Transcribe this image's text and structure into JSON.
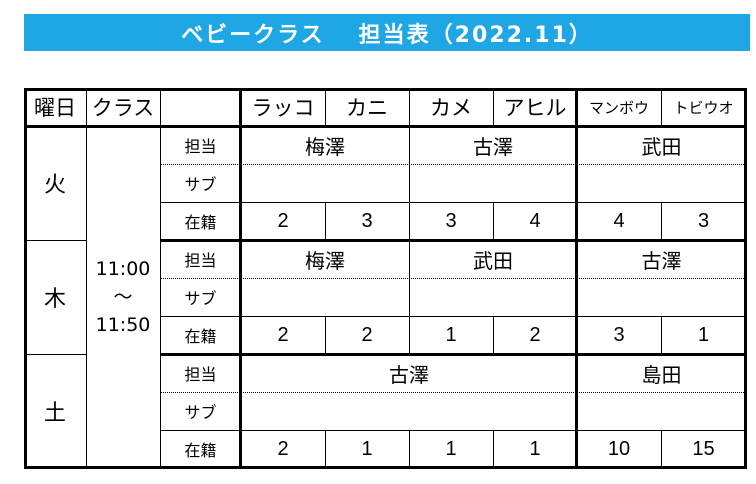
{
  "title": {
    "main": "ベビークラス",
    "sub": "担当表（2022.11）"
  },
  "headers": {
    "day": "曜日",
    "class": "クラス",
    "groups": [
      "ラッコ",
      "カニ",
      "カメ",
      "アヒル",
      "マンボウ",
      "トビウオ"
    ]
  },
  "time": {
    "start": "11:00",
    "sep": "～",
    "end": "11:50"
  },
  "row_labels": {
    "charge": "担当",
    "sub": "サブ",
    "enrolled": "在籍"
  },
  "days": [
    {
      "day": "火",
      "charge": [
        "梅澤",
        "古澤",
        "武田"
      ],
      "sub": [
        "",
        "",
        ""
      ],
      "enrolled": [
        "2",
        "3",
        "3",
        "4",
        "4",
        "3"
      ]
    },
    {
      "day": "木",
      "charge": [
        "梅澤",
        "武田",
        "古澤"
      ],
      "sub": [
        "",
        "",
        ""
      ],
      "enrolled": [
        "2",
        "2",
        "1",
        "2",
        "3",
        "1"
      ]
    },
    {
      "day": "土",
      "charge": [
        "古澤",
        "島田"
      ],
      "sub": [
        "",
        ""
      ],
      "enrolled": [
        "2",
        "1",
        "1",
        "1",
        "10",
        "15"
      ]
    }
  ]
}
